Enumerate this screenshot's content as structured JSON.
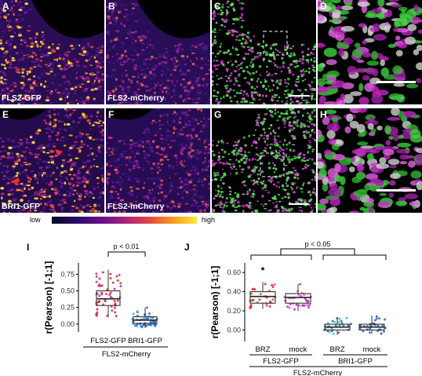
{
  "panels": {
    "A": {
      "letter": "A",
      "label": "FLS2-GFP"
    },
    "B": {
      "letter": "B",
      "label": "FLS2-mCherry"
    },
    "C": {
      "letter": "C",
      "label": ""
    },
    "D": {
      "letter": "D",
      "label": ""
    },
    "E": {
      "letter": "E",
      "label": "BRI1-GFP"
    },
    "F": {
      "letter": "F",
      "label": "FLS2-mCherry"
    },
    "G": {
      "letter": "G",
      "label": ""
    },
    "H": {
      "letter": "H",
      "label": ""
    }
  },
  "colorbar": {
    "low": "low",
    "high": "high"
  },
  "colors": {
    "red": "#d62828",
    "blue": "#2b6cc4",
    "magenta": "#c026c0",
    "green": "#3ad13a",
    "box": "#333333"
  },
  "chart_data": [
    {
      "type": "box",
      "panel": "I",
      "ylabel": "r(Pearson) [-1;1]",
      "ylim": [
        -0.12,
        0.92
      ],
      "yticks": [
        "0.00",
        "0.25",
        "0.50",
        "0.75"
      ],
      "categories": [
        "FLS2-GFP",
        "BRI1-GFP"
      ],
      "group_label": "FLS2-mCherry",
      "significance": "p < 0.01",
      "boxes": [
        {
          "name": "FLS2-GFP",
          "q1": 0.28,
          "median": 0.38,
          "q3": 0.5,
          "whisker_low": 0.1,
          "whisker_high": 0.82
        },
        {
          "name": "BRI1-GFP",
          "q1": 0.01,
          "median": 0.06,
          "q3": 0.11,
          "whisker_low": -0.06,
          "whisker_high": 0.25
        }
      ]
    },
    {
      "type": "box",
      "panel": "J",
      "ylabel": "r(Pearson) [-1;1]",
      "ylim": [
        -0.12,
        0.7
      ],
      "yticks": [
        "0.00",
        "0.20",
        "0.40",
        "0.60"
      ],
      "categories": [
        "BRZ",
        "mock",
        "BRZ",
        "mock"
      ],
      "groups": [
        "FLS2-GFP",
        "BRI1-GFP"
      ],
      "outer_label": "FLS2-mCherry",
      "significance": "p < 0.05",
      "boxes": [
        {
          "name": "FLS2-GFP BRZ",
          "q1": 0.28,
          "median": 0.35,
          "q3": 0.4,
          "whisker_low": 0.22,
          "whisker_high": 0.5
        },
        {
          "name": "FLS2-GFP mock",
          "q1": 0.28,
          "median": 0.34,
          "q3": 0.38,
          "whisker_low": 0.2,
          "whisker_high": 0.48
        },
        {
          "name": "BRI1-GFP BRZ",
          "q1": 0.0,
          "median": 0.03,
          "q3": 0.06,
          "whisker_low": -0.05,
          "whisker_high": 0.13
        },
        {
          "name": "BRI1-GFP mock",
          "q1": 0.0,
          "median": 0.03,
          "q3": 0.06,
          "whisker_low": -0.04,
          "whisker_high": 0.15
        }
      ]
    }
  ]
}
